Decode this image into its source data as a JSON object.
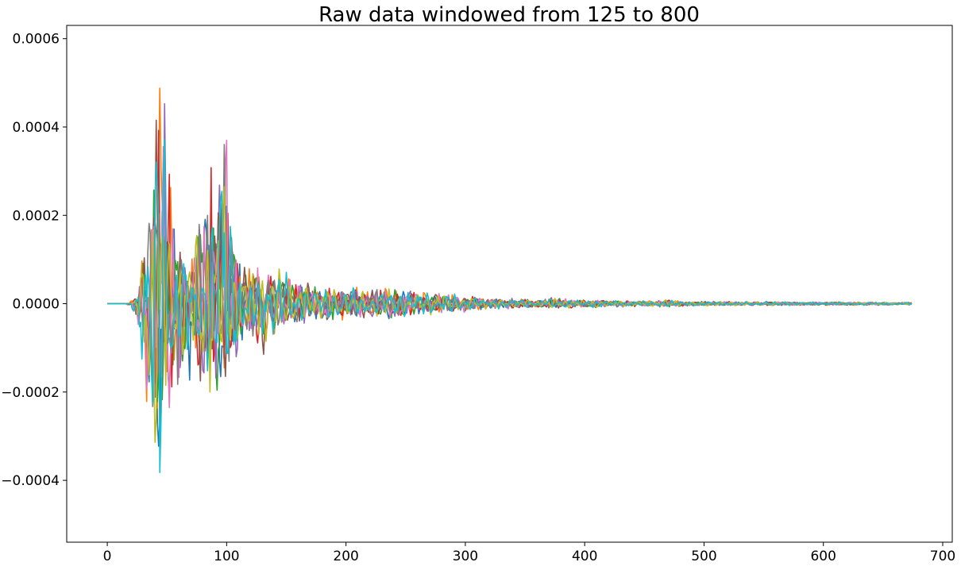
{
  "chart_data": {
    "type": "line",
    "title": "Raw data windowed from 125 to 800",
    "xlabel": "",
    "ylabel": "",
    "xlim": [
      -34,
      708
    ],
    "ylim": [
      -0.00054,
      0.00063
    ],
    "xticks": [
      0,
      100,
      200,
      300,
      400,
      500,
      600,
      700
    ],
    "xtick_labels": [
      "0",
      "100",
      "200",
      "300",
      "400",
      "500",
      "600",
      "700"
    ],
    "yticks": [
      -0.0004,
      -0.0002,
      0.0,
      0.0002,
      0.0004,
      0.0006
    ],
    "ytick_labels": [
      "−0.0004",
      "−0.0002",
      "0.0000",
      "0.0002",
      "0.0004",
      "0.0006"
    ],
    "grid": false,
    "legend": "none",
    "samples_per_series": 675,
    "series_count": 10,
    "series_colors": [
      "#1f77b4",
      "#ff7f0e",
      "#2ca02c",
      "#d62728",
      "#9467bd",
      "#8c564b",
      "#e377c2",
      "#7f7f7f",
      "#bcbd22",
      "#17becf"
    ],
    "envelope": {
      "x": [
        0,
        15,
        25,
        30,
        35,
        40,
        45,
        50,
        55,
        60,
        70,
        80,
        85,
        90,
        95,
        100,
        105,
        110,
        120,
        130,
        140,
        150,
        160,
        180,
        200,
        220,
        240,
        260,
        280,
        300,
        320,
        340,
        360,
        375,
        380,
        400,
        420,
        450,
        475,
        480,
        500,
        530,
        560,
        600,
        640,
        674
      ],
      "upper": [
        5e-07,
        2e-06,
        2e-05,
        0.00016,
        0.00025,
        0.00043,
        0.00058,
        0.00048,
        0.00025,
        0.00012,
        0.00011,
        0.00029,
        0.00034,
        0.00032,
        0.00037,
        0.00038,
        0.00017,
        0.00012,
        9e-05,
        8e-05,
        9e-05,
        8e-05,
        6e-05,
        4e-05,
        4e-05,
        3.5e-05,
        4e-05,
        3e-05,
        2.5e-05,
        2e-05,
        1.4e-05,
        1.2e-05,
        1e-05,
        1.8e-05,
        1.2e-05,
        1e-05,
        9e-06,
        7e-06,
        1e-05,
        6e-06,
        6e-06,
        5e-06,
        5e-06,
        4e-06,
        4e-06,
        3e-06
      ],
      "lower": [
        -5e-07,
        -2e-06,
        -3e-05,
        -0.00019,
        -0.00033,
        -0.00049,
        -0.00045,
        -0.00033,
        -0.00023,
        -0.00019,
        -0.00018,
        -0.00021,
        -0.00023,
        -0.00024,
        -0.00025,
        -0.00023,
        -0.00015,
        -0.00013,
        -0.0001,
        -0.00013,
        -8e-05,
        -6e-05,
        -5e-05,
        -4e-05,
        -4e-05,
        -3.5e-05,
        -4e-05,
        -3e-05,
        -2.5e-05,
        -2e-05,
        -1.4e-05,
        -1.2e-05,
        -1e-05,
        -1.2e-05,
        -1.2e-05,
        -1e-05,
        -9e-06,
        -7e-06,
        -8e-06,
        -6e-06,
        -6e-06,
        -5e-06,
        -5e-06,
        -4e-06,
        -4e-06,
        -3e-06
      ]
    }
  }
}
